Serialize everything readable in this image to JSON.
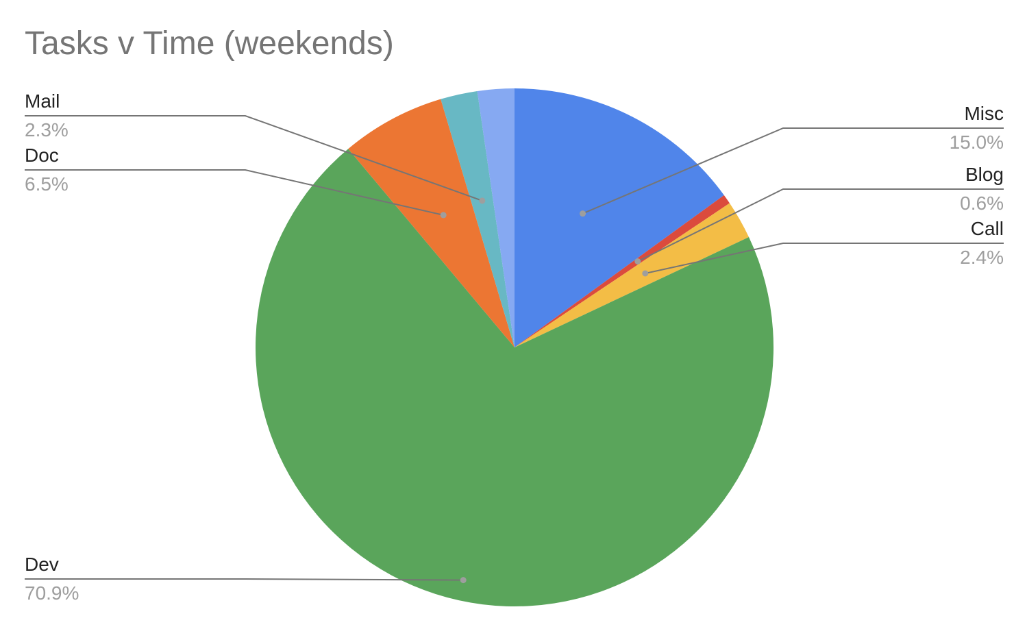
{
  "chart_data": {
    "type": "pie",
    "title": "Tasks v Time (weekends)",
    "slices": [
      {
        "label": "Misc",
        "value": 15.0,
        "percent_label": "15.0%",
        "color": "#5085ea"
      },
      {
        "label": "Blog",
        "value": 0.6,
        "percent_label": "0.6%",
        "color": "#db4b3d"
      },
      {
        "label": "Call",
        "value": 2.4,
        "percent_label": "2.4%",
        "color": "#f3bd46"
      },
      {
        "label": "Dev",
        "value": 70.9,
        "percent_label": "70.9%",
        "color": "#5aa55b"
      },
      {
        "label": "Doc",
        "value": 6.5,
        "percent_label": "6.5%",
        "color": "#ec7633"
      },
      {
        "label": "Mail",
        "value": 2.3,
        "percent_label": "2.3%",
        "color": "#68b8c4"
      },
      {
        "label": "",
        "value": 2.3,
        "percent_label": "",
        "color": "#86a9f2"
      }
    ],
    "start_angle": "12 o'clock",
    "direction": "clockwise",
    "label_style": "outside with leader lines"
  }
}
